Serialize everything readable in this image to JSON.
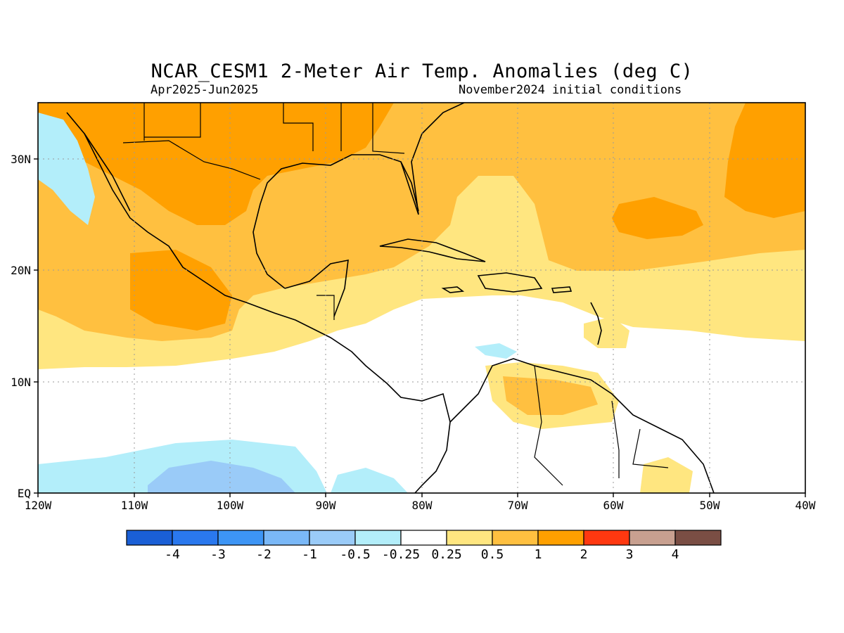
{
  "title": "NCAR_CESM1 2-Meter Air Temp. Anomalies (deg C)",
  "subtitle_left": "Apr2025-Jun2025",
  "subtitle_right": "November2024 initial conditions",
  "lon_labels": [
    "120W",
    "110W",
    "100W",
    "90W",
    "80W",
    "70W",
    "60W",
    "50W",
    "40W"
  ],
  "lat_labels": [
    "30N",
    "20N",
    "10N",
    "EQ"
  ],
  "colorbar": {
    "labels": [
      "-4",
      "-3",
      "-2",
      "-1",
      "-0.5",
      "-0.25",
      "0.25",
      "0.5",
      "1",
      "2",
      "3",
      "4"
    ],
    "colors": [
      "#1a5fd6",
      "#2a78ee",
      "#3d95f5",
      "#7ab8f7",
      "#9acbf8",
      "#b3eefa",
      "#ffffff",
      "#ffe680",
      "#ffc040",
      "#ffa000",
      "#ff3810",
      "#c8a090",
      "#7a4e44"
    ]
  },
  "fill_colors": {
    "ocean_neutral": "#ffffff",
    "light_blue": "#b3eefa",
    "mid_blue": "#9acbf8",
    "light_yellow": "#ffe680",
    "light_orange": "#ffc040",
    "orange": "#ffa000"
  }
}
